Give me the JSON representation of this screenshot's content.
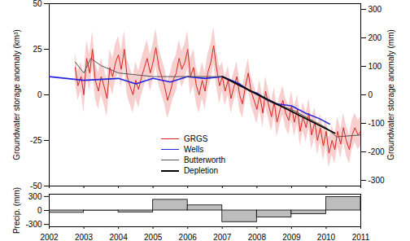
{
  "chart_data": [
    {
      "type": "line",
      "ylabel": "Groundwater storage anomaly (km³)",
      "y2label": "Groundwater storage anomaly (mm)",
      "xlim": [
        2002,
        2011
      ],
      "xticks": [
        2002,
        2003,
        2004,
        2005,
        2006,
        2007,
        2008,
        2009,
        2010,
        2011
      ],
      "ylim": [
        -50,
        50
      ],
      "yticks": [
        -50,
        -25,
        0,
        25,
        50
      ],
      "y2lim": [
        -320,
        320
      ],
      "y2ticks": [
        -300,
        -200,
        -100,
        0,
        100,
        200,
        300
      ],
      "tick_labels": "y",
      "legend": "bottom",
      "series": [
        {
          "name": "GRGS",
          "color": "#d7261e",
          "x": [
            2002.75,
            2002.83,
            2002.92,
            2003.0,
            2003.08,
            2003.17,
            2003.25,
            2003.33,
            2003.42,
            2003.5,
            2003.58,
            2003.67,
            2003.75,
            2003.83,
            2003.92,
            2004.0,
            2004.08,
            2004.17,
            2004.25,
            2004.33,
            2004.42,
            2004.5,
            2004.58,
            2004.67,
            2004.75,
            2004.83,
            2004.92,
            2005.0,
            2005.08,
            2005.17,
            2005.25,
            2005.33,
            2005.42,
            2005.5,
            2005.58,
            2005.67,
            2005.75,
            2005.83,
            2005.92,
            2006.0,
            2006.08,
            2006.17,
            2006.25,
            2006.33,
            2006.42,
            2006.5,
            2006.58,
            2006.67,
            2006.75,
            2006.83,
            2006.92,
            2007.0,
            2007.08,
            2007.17,
            2007.25,
            2007.33,
            2007.42,
            2007.5,
            2007.58,
            2007.67,
            2007.75,
            2007.83,
            2007.92,
            2008.0,
            2008.08,
            2008.17,
            2008.25,
            2008.33,
            2008.42,
            2008.5,
            2008.58,
            2008.67,
            2008.75,
            2008.83,
            2008.92,
            2009.0,
            2009.08,
            2009.17,
            2009.25,
            2009.33,
            2009.42,
            2009.5,
            2009.58,
            2009.67,
            2009.75,
            2009.83,
            2009.92,
            2010.0,
            2010.08,
            2010.17,
            2010.25,
            2010.33,
            2010.42,
            2010.5,
            2010.58,
            2010.67,
            2010.75,
            2010.83,
            2010.92,
            2011.0
          ],
          "values": [
            15,
            5,
            10,
            0,
            20,
            12,
            25,
            8,
            2,
            10,
            5,
            -2,
            15,
            10,
            18,
            22,
            14,
            25,
            10,
            5,
            0,
            8,
            3,
            10,
            15,
            20,
            12,
            18,
            26,
            15,
            10,
            5,
            -3,
            2,
            8,
            12,
            20,
            14,
            18,
            25,
            10,
            15,
            5,
            0,
            8,
            2,
            12,
            18,
            27,
            15,
            5,
            10,
            2,
            8,
            -2,
            4,
            10,
            0,
            -5,
            5,
            12,
            2,
            -3,
            -8,
            0,
            -10,
            2,
            -5,
            -12,
            -4,
            -15,
            -8,
            -3,
            -10,
            -14,
            -6,
            -15,
            -8,
            -20,
            -12,
            -18,
            -10,
            -22,
            -15,
            -25,
            -18,
            -28,
            -20,
            -32,
            -25,
            -30,
            -20,
            -27,
            -18,
            -25,
            -30,
            -22,
            -18,
            -22,
            -20
          ],
          "errors": [
            8,
            8,
            8,
            10,
            10,
            10,
            10,
            10,
            10,
            10,
            10,
            10,
            10,
            10,
            10,
            10,
            10,
            10,
            10,
            10,
            10,
            10,
            10,
            10,
            10,
            10,
            10,
            10,
            10,
            10,
            10,
            10,
            10,
            10,
            10,
            10,
            10,
            10,
            10,
            10,
            10,
            10,
            10,
            10,
            10,
            10,
            10,
            10,
            10,
            10,
            10,
            8,
            8,
            8,
            8,
            8,
            8,
            8,
            8,
            8,
            8,
            8,
            8,
            8,
            8,
            8,
            8,
            8,
            8,
            8,
            8,
            8,
            8,
            8,
            8,
            8,
            8,
            8,
            8,
            8,
            8,
            8,
            8,
            8,
            8,
            8,
            8,
            8,
            8,
            8,
            8,
            8,
            8,
            8,
            8,
            8,
            8,
            8,
            8,
            8
          ]
        },
        {
          "name": "Wells",
          "color": "#2424e0",
          "x": [
            2002.0,
            2003.0,
            2004.0,
            2004.5,
            2005.0,
            2005.5,
            2006.0,
            2006.5,
            2007.0,
            2007.5,
            2007.8,
            2008.0,
            2008.3,
            2008.6,
            2009.0,
            2009.4,
            2009.8,
            2010.1
          ],
          "values": [
            10,
            8,
            9,
            6,
            9,
            7,
            10,
            9,
            10,
            6,
            2,
            1,
            -3,
            -5,
            -6,
            -10,
            -13,
            -16
          ]
        },
        {
          "name": "Butterworth",
          "color": "#555555",
          "x": [
            2002.75,
            2003.0,
            2003.2,
            2003.5,
            2004.0,
            2005.0,
            2006.0,
            2007.0,
            2007.5,
            2008.0,
            2008.5,
            2009.0,
            2009.5,
            2010.0,
            2010.3,
            2011.0
          ],
          "values": [
            18,
            12,
            20,
            16,
            12,
            10,
            10,
            10,
            5,
            0,
            -5,
            -8,
            -13,
            -18,
            -23,
            -22
          ]
        },
        {
          "name": "Depletion",
          "color": "#000000",
          "x": [
            2007.0,
            2010.25
          ],
          "values": [
            10,
            -21
          ]
        }
      ]
    },
    {
      "type": "bar",
      "ylabel": "Precip. (mm)",
      "xlim": [
        2002,
        2011
      ],
      "xticks": [
        2002,
        2003,
        2004,
        2005,
        2006,
        2007,
        2008,
        2009,
        2010,
        2011
      ],
      "ylim": [
        -350,
        350
      ],
      "yticks": [
        -300,
        0,
        300
      ],
      "color": "#bdbdbd",
      "bins": [
        2002,
        2003,
        2004,
        2005,
        2006,
        2007,
        2008,
        2009,
        2010,
        2011
      ],
      "values": [
        -50,
        -5,
        -40,
        230,
        110,
        -250,
        -150,
        -80,
        290
      ]
    }
  ]
}
